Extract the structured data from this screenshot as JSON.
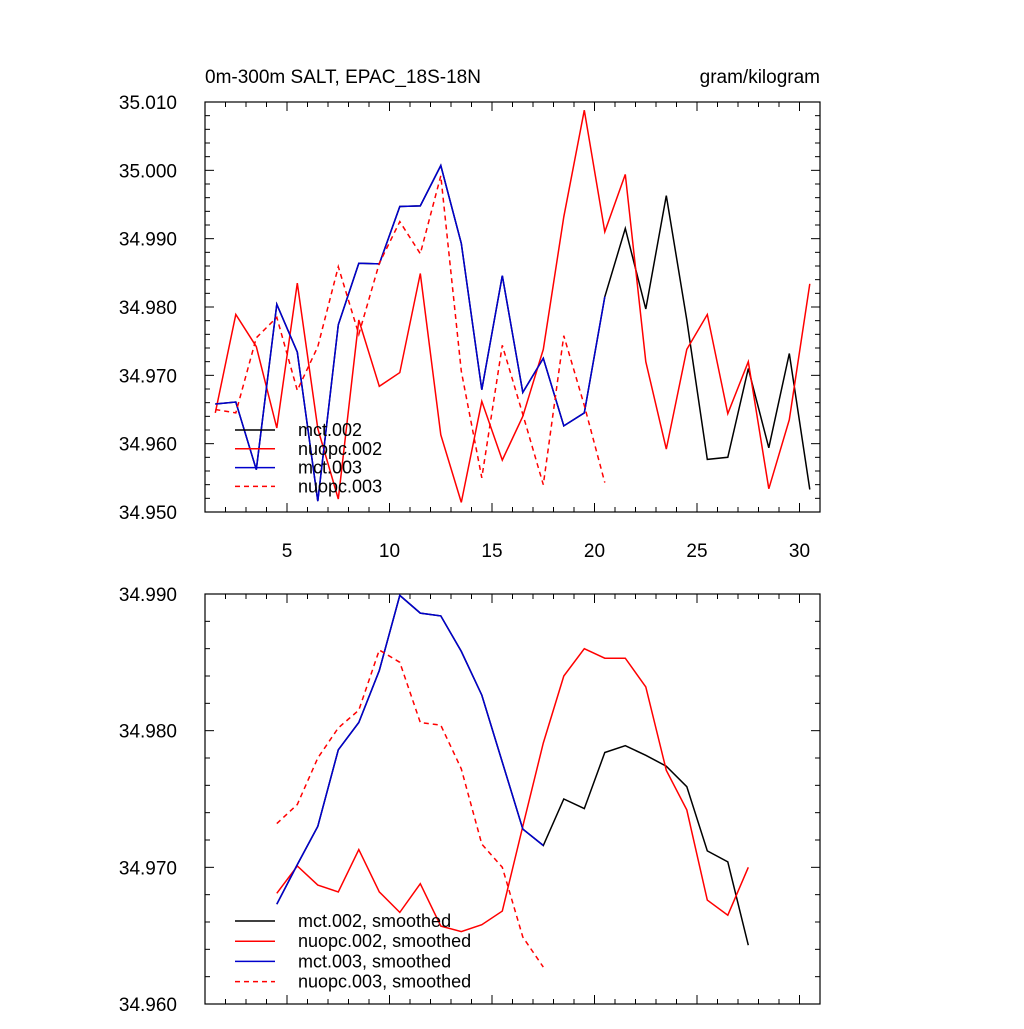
{
  "chart_data": [
    {
      "type": "line",
      "title_left": "0m-300m SALT, EPAC_18S-18N",
      "title_right": "gram/kilogram",
      "xlabel": "",
      "ylabel": "",
      "xlim": [
        1.0,
        31.0
      ],
      "ylim": [
        34.95,
        35.01
      ],
      "xticks": [
        5,
        10,
        15,
        20,
        25,
        30
      ],
      "xtick_labels": [
        "5",
        "10",
        "15",
        "20",
        "25",
        "30"
      ],
      "yticks": [
        34.95,
        34.96,
        34.97,
        34.98,
        34.99,
        35.0,
        35.01
      ],
      "ytick_labels": [
        "34.950",
        "34.960",
        "34.970",
        "34.980",
        "34.990",
        "35.000",
        "35.010"
      ],
      "legend_position": "bottom-left",
      "series": [
        {
          "name": "mct.002",
          "color": "#000000",
          "dash": "solid",
          "x": [
            1.5,
            2.5,
            3.5,
            4.5,
            5.5,
            6.5,
            7.5,
            8.5,
            9.5,
            10.5,
            11.5,
            12.5,
            13.5,
            14.5,
            15.5,
            16.5,
            17.5,
            18.5,
            19.5,
            20.5,
            21.5,
            22.5,
            23.5,
            24.5,
            25.5,
            26.5,
            27.5,
            28.5,
            29.5,
            30.5
          ],
          "values": [
            34.9658,
            34.9661,
            34.9562,
            34.9804,
            34.9734,
            34.9516,
            34.9774,
            34.9864,
            34.9863,
            34.9947,
            34.9948,
            35.0007,
            34.9893,
            34.9679,
            34.9846,
            34.9675,
            34.9725,
            34.9626,
            34.9645,
            34.9815,
            34.9915,
            34.9797,
            34.9963,
            34.9781,
            34.9577,
            34.958,
            34.971,
            34.9594,
            34.9732,
            34.9533
          ]
        },
        {
          "name": "nuopc.002",
          "color": "#ff0000",
          "dash": "solid",
          "x": [
            1.5,
            2.5,
            3.5,
            4.5,
            5.5,
            6.5,
            7.5,
            8.5,
            9.5,
            10.5,
            11.5,
            12.5,
            13.5,
            14.5,
            15.5,
            16.5,
            17.5,
            18.5,
            19.5,
            20.5,
            21.5,
            22.5,
            23.5,
            24.5,
            25.5,
            26.5,
            27.5,
            28.5,
            29.5,
            30.5
          ],
          "values": [
            34.9645,
            34.9789,
            34.9742,
            34.9623,
            34.9835,
            34.9622,
            34.9519,
            34.9781,
            34.9684,
            34.9704,
            34.9849,
            34.9613,
            34.9514,
            34.9662,
            34.9576,
            34.964,
            34.9738,
            34.9932,
            35.0088,
            34.991,
            34.9994,
            34.972,
            34.9592,
            34.9738,
            34.9789,
            34.9644,
            34.972,
            34.9534,
            34.9635,
            34.9834
          ]
        },
        {
          "name": "mct.003",
          "color": "#0000cc",
          "dash": "solid",
          "x": [
            1.5,
            2.5,
            3.5,
            4.5,
            5.5,
            6.5,
            7.5,
            8.5,
            9.5,
            10.5,
            11.5,
            12.5,
            13.5,
            14.5,
            15.5,
            16.5,
            17.5,
            18.5,
            19.5,
            20.5
          ],
          "values": [
            34.9658,
            34.9661,
            34.9562,
            34.9804,
            34.9734,
            34.9516,
            34.9774,
            34.9864,
            34.9863,
            34.9947,
            34.9948,
            35.0007,
            34.9893,
            34.9679,
            34.9846,
            34.9675,
            34.9725,
            34.9626,
            34.9645,
            34.9815
          ]
        },
        {
          "name": "nuopc.003",
          "color": "#ff0000",
          "dash": "dashed",
          "x": [
            1.5,
            2.5,
            3.5,
            4.5,
            5.5,
            6.5,
            7.5,
            8.5,
            9.5,
            10.5,
            11.5,
            12.5,
            13.5,
            14.5,
            15.5,
            16.5,
            17.5,
            18.5,
            19.5,
            20.5
          ],
          "values": [
            34.965,
            34.9645,
            34.9755,
            34.9785,
            34.9678,
            34.9742,
            34.9859,
            34.976,
            34.9864,
            34.9925,
            34.9878,
            34.9992,
            34.9706,
            34.955,
            34.9744,
            34.9643,
            34.954,
            34.9758,
            34.9656,
            34.9543
          ]
        }
      ]
    },
    {
      "type": "line",
      "xlabel": "",
      "ylabel": "",
      "xlim": [
        1.0,
        31.0
      ],
      "ylim": [
        34.96,
        34.99
      ],
      "xticks": [
        5,
        10,
        15,
        20,
        25,
        30
      ],
      "yticks": [
        34.96,
        34.97,
        34.98,
        34.99
      ],
      "ytick_labels": [
        "34.960",
        "34.970",
        "34.980",
        "34.990"
      ],
      "legend_position": "bottom-left",
      "series": [
        {
          "name": "mct.002, smoothed",
          "color": "#000000",
          "dash": "solid",
          "x": [
            4.5,
            5.5,
            6.5,
            7.5,
            8.5,
            9.5,
            10.5,
            11.5,
            12.5,
            13.5,
            14.5,
            15.5,
            16.5,
            17.5,
            18.5,
            19.5,
            20.5,
            21.5,
            22.5,
            23.5,
            24.5,
            25.5,
            26.5,
            27.5
          ],
          "values": [
            34.9673,
            34.9702,
            34.973,
            34.9786,
            34.9806,
            34.9844,
            34.9899,
            34.9886,
            34.9884,
            34.9858,
            34.9826,
            34.9777,
            34.9728,
            34.9716,
            34.975,
            34.9743,
            34.9784,
            34.9789,
            34.9782,
            34.9774,
            34.9759,
            34.9712,
            34.9704,
            34.9643
          ]
        },
        {
          "name": "nuopc.002, smoothed",
          "color": "#ff0000",
          "dash": "solid",
          "x": [
            4.5,
            5.5,
            6.5,
            7.5,
            8.5,
            9.5,
            10.5,
            11.5,
            12.5,
            13.5,
            14.5,
            15.5,
            16.5,
            17.5,
            18.5,
            19.5,
            20.5,
            21.5,
            22.5,
            23.5,
            24.5,
            25.5,
            26.5,
            27.5
          ],
          "values": [
            34.9681,
            34.9701,
            34.9687,
            34.9682,
            34.9713,
            34.9682,
            34.9667,
            34.9688,
            34.9657,
            34.9653,
            34.9658,
            34.9668,
            34.973,
            34.9791,
            34.984,
            34.986,
            34.9853,
            34.9853,
            34.9832,
            34.9771,
            34.9742,
            34.9676,
            34.9665,
            34.97
          ]
        },
        {
          "name": "mct.003, smoothed",
          "color": "#0000cc",
          "dash": "solid",
          "x": [
            4.5,
            5.5,
            6.5,
            7.5,
            8.5,
            9.5,
            10.5,
            11.5,
            12.5,
            13.5,
            14.5,
            15.5,
            16.5,
            17.5
          ],
          "values": [
            34.9673,
            34.9702,
            34.973,
            34.9786,
            34.9806,
            34.9844,
            34.9899,
            34.9886,
            34.9884,
            34.9858,
            34.9826,
            34.9777,
            34.9728,
            34.9716
          ]
        },
        {
          "name": "nuopc.003, smoothed",
          "color": "#ff0000",
          "dash": "dashed",
          "x": [
            4.5,
            5.5,
            6.5,
            7.5,
            8.5,
            9.5,
            10.5,
            11.5,
            12.5,
            13.5,
            14.5,
            15.5,
            16.5,
            17.5
          ],
          "values": [
            34.9732,
            34.9746,
            34.978,
            34.9802,
            34.9815,
            34.9859,
            34.985,
            34.9806,
            34.9804,
            34.9772,
            34.9717,
            34.97,
            34.9649,
            34.9627
          ]
        }
      ]
    }
  ]
}
